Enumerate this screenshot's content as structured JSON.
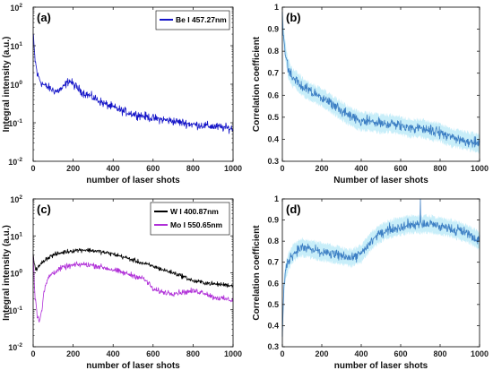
{
  "chart_data": [
    {
      "panel_label": "(a)",
      "type": "line",
      "ylabel": "Integral intensity (a.u.)",
      "xlabel": "number of laser shots",
      "scale_y": "log",
      "xlim": [
        0,
        1000
      ],
      "ylim": [
        0.01,
        100
      ],
      "xticks": [
        "0",
        "200",
        "400",
        "600",
        "800",
        "1000"
      ],
      "yticks": [
        {
          "base": "10",
          "exp": "-2"
        },
        {
          "base": "10",
          "exp": "-1"
        },
        {
          "base": "10",
          "exp": "0"
        },
        {
          "base": "10",
          "exp": "1"
        },
        {
          "base": "10",
          "exp": "2"
        }
      ],
      "legend": {
        "position": "top-right",
        "entries": [
          "Be I 457.27nm"
        ]
      },
      "series": [
        {
          "name": "Be I 457.27nm",
          "color": "#1515c8",
          "x": [
            0,
            5,
            10,
            20,
            40,
            60,
            80,
            100,
            120,
            150,
            180,
            200,
            220,
            250,
            300,
            350,
            400,
            450,
            500,
            550,
            600,
            650,
            700,
            750,
            800,
            850,
            900,
            950,
            1000
          ],
          "values": [
            20,
            8,
            4,
            1.8,
            1.1,
            0.9,
            0.8,
            0.7,
            0.65,
            0.8,
            1.25,
            1.0,
            0.8,
            0.6,
            0.45,
            0.32,
            0.25,
            0.2,
            0.17,
            0.15,
            0.13,
            0.12,
            0.11,
            0.1,
            0.09,
            0.085,
            0.08,
            0.075,
            0.07
          ],
          "noise_log10": 0.08
        }
      ]
    },
    {
      "panel_label": "(b)",
      "type": "line",
      "ylabel": "Correlation coefficient",
      "xlabel": "Number of laser shots",
      "scale_y": "linear",
      "xlim": [
        0,
        1000
      ],
      "ylim": [
        0.3,
        1
      ],
      "xticks": [
        "0",
        "200",
        "400",
        "600",
        "800",
        "1000"
      ],
      "yticks": [
        "0.3",
        "0.4",
        "0.5",
        "0.6",
        "0.7",
        "0.8",
        "0.9",
        "1"
      ],
      "band_color": "#c2ecf8",
      "series": [
        {
          "color": "#3d7fc4",
          "x": [
            0,
            5,
            15,
            30,
            50,
            80,
            100,
            150,
            200,
            250,
            300,
            350,
            400,
            450,
            500,
            550,
            600,
            650,
            700,
            750,
            800,
            850,
            900,
            950,
            1000
          ],
          "values": [
            0.97,
            0.88,
            0.8,
            0.72,
            0.68,
            0.66,
            0.64,
            0.61,
            0.59,
            0.56,
            0.53,
            0.5,
            0.48,
            0.48,
            0.47,
            0.47,
            0.46,
            0.45,
            0.45,
            0.44,
            0.43,
            0.41,
            0.4,
            0.39,
            0.38
          ],
          "noise": 0.018
        }
      ]
    },
    {
      "panel_label": "(c)",
      "type": "line",
      "ylabel": "Integral intensity (a.u.)",
      "xlabel": "number of laser shots",
      "scale_y": "log",
      "xlim": [
        0,
        1000
      ],
      "ylim": [
        0.01,
        100
      ],
      "xticks": [
        "0",
        "200",
        "400",
        "600",
        "800",
        "1000"
      ],
      "yticks": [
        {
          "base": "10",
          "exp": "-2"
        },
        {
          "base": "10",
          "exp": "-1"
        },
        {
          "base": "10",
          "exp": "0"
        },
        {
          "base": "10",
          "exp": "1"
        },
        {
          "base": "10",
          "exp": "2"
        }
      ],
      "legend": {
        "position": "top-right",
        "entries": [
          "W I 400.87nm",
          "Mo I 550.65nm"
        ]
      },
      "series": [
        {
          "name": "W I 400.87nm",
          "color": "#000000",
          "x": [
            0,
            5,
            15,
            30,
            60,
            100,
            150,
            200,
            250,
            300,
            350,
            400,
            450,
            500,
            550,
            600,
            650,
            700,
            750,
            800,
            850,
            900,
            950,
            1000
          ],
          "values": [
            3.5,
            1.8,
            1.2,
            1.5,
            2.3,
            3.0,
            3.6,
            4.0,
            4.2,
            4.0,
            3.6,
            3.2,
            2.7,
            2.2,
            1.8,
            1.5,
            1.2,
            1.0,
            0.8,
            0.6,
            0.55,
            0.5,
            0.48,
            0.45
          ],
          "noise_log10": 0.045
        },
        {
          "name": "Mo I 550.65nm",
          "color": "#b030d8",
          "x": [
            0,
            5,
            10,
            20,
            30,
            45,
            60,
            80,
            100,
            150,
            200,
            250,
            300,
            350,
            400,
            450,
            500,
            550,
            580,
            600,
            650,
            700,
            750,
            800,
            850,
            900,
            950,
            1000
          ],
          "values": [
            3.0,
            0.6,
            0.2,
            0.07,
            0.05,
            0.1,
            0.4,
            0.8,
            1.0,
            1.4,
            1.6,
            1.7,
            1.6,
            1.4,
            1.2,
            1.0,
            0.85,
            0.7,
            0.5,
            0.35,
            0.3,
            0.28,
            0.3,
            0.32,
            0.3,
            0.22,
            0.2,
            0.18
          ],
          "noise_log10": 0.055
        }
      ]
    },
    {
      "panel_label": "(d)",
      "type": "line",
      "ylabel": "Correlation coefficient",
      "xlabel": "number of laser shots",
      "scale_y": "linear",
      "xlim": [
        0,
        1000
      ],
      "ylim": [
        0.3,
        1
      ],
      "xticks": [
        "0",
        "200",
        "400",
        "600",
        "800",
        "1000"
      ],
      "yticks": [
        "0.3",
        "0.4",
        "0.5",
        "0.6",
        "0.7",
        "0.8",
        "0.9",
        "1"
      ],
      "band_color": "#c2ecf8",
      "series": [
        {
          "color": "#3d7fc4",
          "x": [
            0,
            3,
            8,
            15,
            30,
            50,
            80,
            100,
            150,
            200,
            250,
            300,
            350,
            400,
            450,
            500,
            550,
            600,
            650,
            700,
            750,
            800,
            850,
            900,
            950,
            1000
          ],
          "values": [
            0.35,
            0.45,
            0.58,
            0.65,
            0.7,
            0.74,
            0.76,
            0.77,
            0.76,
            0.75,
            0.74,
            0.73,
            0.72,
            0.74,
            0.8,
            0.84,
            0.86,
            0.87,
            0.88,
            0.88,
            0.88,
            0.87,
            0.86,
            0.85,
            0.83,
            0.8
          ],
          "noise": 0.018,
          "spikes": [
            {
              "x": 700,
              "y": 1.0
            }
          ]
        }
      ]
    }
  ]
}
